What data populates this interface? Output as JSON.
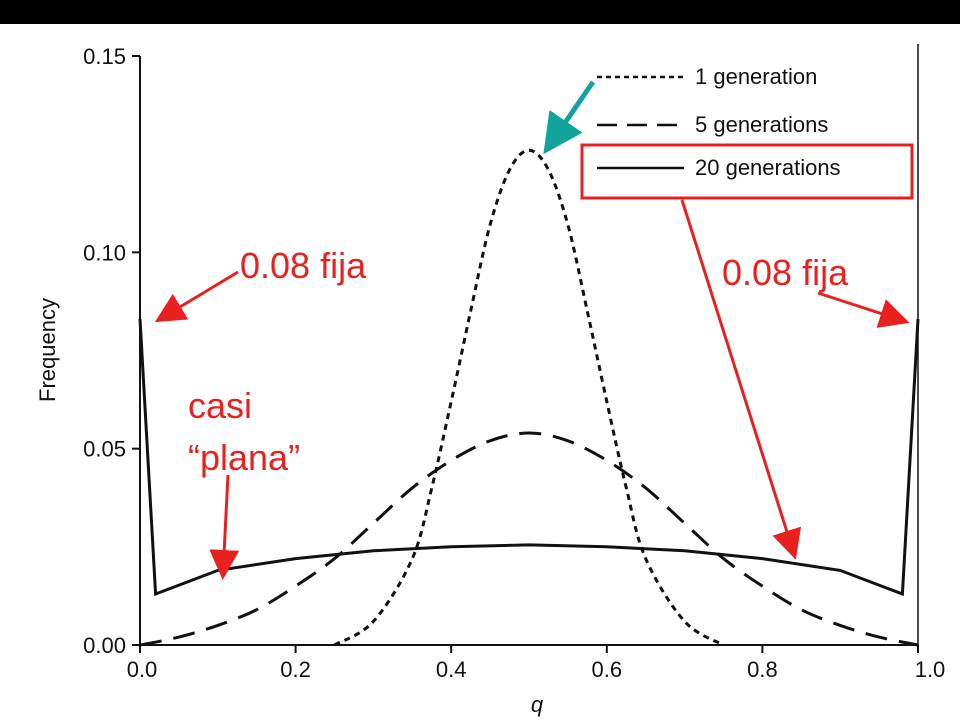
{
  "chart_data": {
    "type": "line",
    "xlabel": "q",
    "ylabel": "Frequency",
    "xlim": [
      0.0,
      1.0
    ],
    "ylim": [
      0.0,
      0.15
    ],
    "x_ticks": [
      "0.0",
      "0.2",
      "0.4",
      "0.6",
      "0.8",
      "1.0"
    ],
    "y_ticks": [
      "0.00",
      "0.05",
      "0.10",
      "0.15"
    ],
    "grid": false,
    "legend_position": "top-right",
    "series": [
      {
        "name": "1 generation",
        "style": "short-dash",
        "x": [
          0.25,
          0.3,
          0.35,
          0.375,
          0.4,
          0.425,
          0.45,
          0.475,
          0.5,
          0.525,
          0.55,
          0.575,
          0.6,
          0.625,
          0.65,
          0.7,
          0.75
        ],
        "y": [
          0.0,
          0.006,
          0.022,
          0.04,
          0.062,
          0.085,
          0.107,
          0.121,
          0.126,
          0.121,
          0.107,
          0.085,
          0.062,
          0.04,
          0.022,
          0.006,
          0.0
        ]
      },
      {
        "name": "5 generations",
        "style": "long-dash",
        "x": [
          0.0,
          0.05,
          0.1,
          0.15,
          0.2,
          0.25,
          0.3,
          0.35,
          0.4,
          0.45,
          0.5,
          0.55,
          0.6,
          0.65,
          0.7,
          0.75,
          0.8,
          0.85,
          0.9,
          0.95,
          1.0
        ],
        "y": [
          0.0,
          0.002,
          0.005,
          0.009,
          0.015,
          0.022,
          0.031,
          0.04,
          0.047,
          0.052,
          0.054,
          0.052,
          0.047,
          0.04,
          0.031,
          0.022,
          0.015,
          0.009,
          0.005,
          0.002,
          0.0
        ]
      },
      {
        "name": "20 generations",
        "style": "solid",
        "x": [
          0.0,
          0.0,
          0.02,
          0.1,
          0.2,
          0.3,
          0.4,
          0.5,
          0.6,
          0.7,
          0.8,
          0.9,
          0.98,
          1.0,
          1.0
        ],
        "y": [
          0.083,
          0.083,
          0.013,
          0.019,
          0.022,
          0.024,
          0.025,
          0.0255,
          0.025,
          0.024,
          0.022,
          0.019,
          0.013,
          0.083,
          0.083
        ]
      }
    ],
    "annotations": [
      {
        "text": "0.08 fija",
        "points_to": [
          0.0,
          0.083
        ]
      },
      {
        "text": "0.08 fija",
        "points_to": [
          1.0,
          0.083
        ]
      },
      {
        "text": "casi",
        "points_to": [
          0.1,
          0.018
        ]
      },
      {
        "text": "“plana”",
        "points_to": [
          0.1,
          0.018
        ]
      }
    ],
    "colors": {
      "annotation": "#e82020",
      "highlight_arrow": "#12a39b",
      "line": "#111111"
    }
  }
}
